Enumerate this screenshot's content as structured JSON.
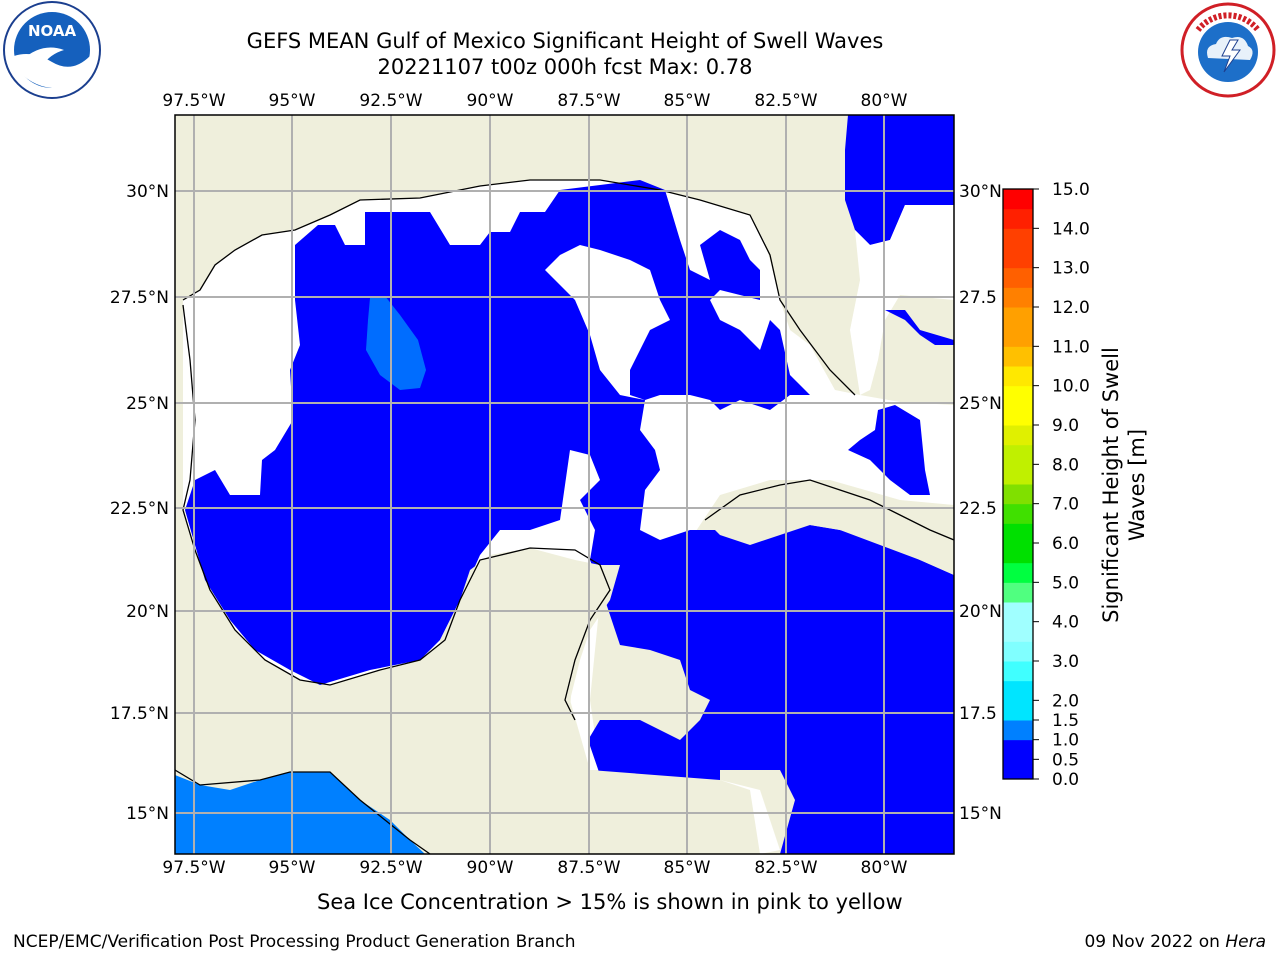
{
  "title_line1": "GEFS MEAN Gulf of Mexico Significant Height of Swell Waves",
  "title_line2": "20221107 t00z 000h fcst   Max: 0.78",
  "logos": {
    "left": {
      "icon": "noaa-logo",
      "text": "NOAA",
      "ring_text": "NATIONAL OCEANIC AND ATMOSPHERIC ADMINISTRATION · U.S. DEPARTMENT OF COMMERCE"
    },
    "right": {
      "icon": "nws-logo",
      "ring_text": "NATIONAL WEATHER SERVICE"
    }
  },
  "map": {
    "lon_labels": [
      "97.5°W",
      "95°W",
      "92.5°W",
      "90°W",
      "87.5°W",
      "85°W",
      "82.5°W",
      "80°W"
    ],
    "lat_labels": [
      "30°N",
      "27.5°N",
      "25°N",
      "22.5°N",
      "20°N",
      "17.5°N",
      "15°N"
    ],
    "right_lat_labels": [
      "30°N",
      "27.5",
      "25°N",
      "22.5",
      "20°N",
      "17.5",
      "15°N"
    ],
    "colors": {
      "land": "#efefdc",
      "ocean_low": "#0000ff",
      "ocean_mid": "#0080ff",
      "nodata": "#ffffff",
      "grid": "#b0b0b0"
    }
  },
  "colorbar": {
    "label": "Significant Height of Swell Waves [m]",
    "ticks": [
      "0.0",
      "0.5",
      "1.0",
      "1.5",
      "2.0",
      "2.5",
      "3.0",
      "3.5",
      "4.0",
      "4.5",
      "5.0",
      "5.5",
      "6.0",
      "6.5",
      "7.0",
      "7.5",
      "8.0",
      "8.5",
      "9.0",
      "9.5",
      "10.0",
      "10.5",
      "11.0",
      "11.5",
      "12.0",
      "12.5",
      "13.0",
      "13.5",
      "14.0",
      "14.5",
      "15.0"
    ],
    "tick_labels": [
      "0.0",
      "0.5",
      "1.0",
      "1.5",
      "2.0",
      "3.0",
      "4.0",
      "5.0",
      "6.0",
      "7.0",
      "8.0",
      "9.0",
      "10.0",
      "11.0",
      "12.0",
      "13.0",
      "14.0",
      "15.0"
    ],
    "colors": [
      "#0000ff",
      "#0080ff",
      "#00e5ff",
      "#40ffff",
      "#80ffff",
      "#a0ffff",
      "#50ff80",
      "#00ff40",
      "#00e000",
      "#40e000",
      "#80e000",
      "#c0f000",
      "#e0f000",
      "#ffff00",
      "#ffe800",
      "#ffc000",
      "#ffa000",
      "#ff8000",
      "#ff6000",
      "#ff4000",
      "#ff2000",
      "#ff0000"
    ]
  },
  "subtitle": "Sea Ice Concentration > 15% is shown in pink to yellow",
  "credit": "NCEP/EMC/Verification Post Processing Product Generation Branch",
  "date_text": "09 Nov 2022 on ",
  "date_host": "Hera"
}
